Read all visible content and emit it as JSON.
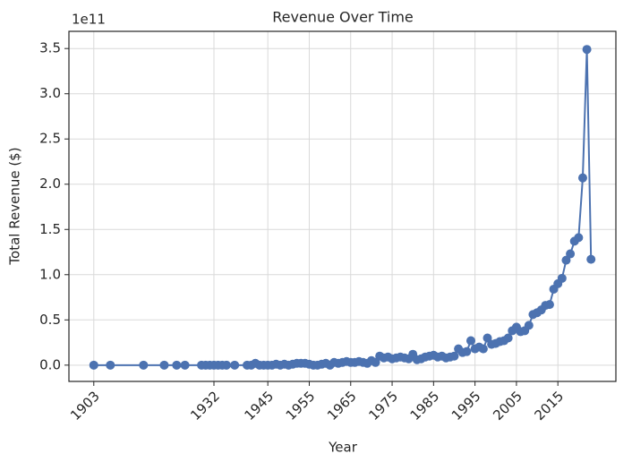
{
  "chart_data": {
    "type": "line",
    "title": "Revenue Over Time",
    "x_label": "Year",
    "y_label": "Total Revenue ($)",
    "y_offset_label": "1e11",
    "color": "#4c72b0",
    "grid": true,
    "markers": true,
    "x": [
      1903,
      1907,
      1915,
      1920,
      1923,
      1925,
      1929,
      1930,
      1931,
      1932,
      1933,
      1934,
      1935,
      1937,
      1940,
      1941,
      1942,
      1943,
      1944,
      1945,
      1946,
      1947,
      1948,
      1949,
      1950,
      1951,
      1952,
      1953,
      1954,
      1955,
      1956,
      1957,
      1958,
      1959,
      1960,
      1961,
      1962,
      1963,
      1964,
      1965,
      1966,
      1967,
      1968,
      1969,
      1970,
      1971,
      1972,
      1973,
      1974,
      1975,
      1976,
      1977,
      1978,
      1979,
      1980,
      1981,
      1982,
      1983,
      1984,
      1985,
      1986,
      1987,
      1988,
      1989,
      1990,
      1991,
      1992,
      1993,
      1994,
      1995,
      1996,
      1997,
      1998,
      1999,
      2000,
      2001,
      2002,
      2003,
      2004,
      2005,
      2006,
      2007,
      2008,
      2009,
      2010,
      2011,
      2012,
      2013,
      2014,
      2015,
      2016,
      2017,
      2018,
      2019,
      2020,
      2021,
      2022,
      2023
    ],
    "values": [
      0,
      0,
      0,
      0,
      0,
      0,
      0,
      0,
      0,
      0,
      0,
      0,
      0,
      0,
      0,
      0,
      0.02,
      0,
      0,
      0,
      0,
      0.01,
      0,
      0.01,
      0,
      0.01,
      0.02,
      0.02,
      0.02,
      0.01,
      0,
      0,
      0.01,
      0.02,
      0,
      0.03,
      0.02,
      0.03,
      0.04,
      0.03,
      0.03,
      0.04,
      0.03,
      0.02,
      0.05,
      0.03,
      0.1,
      0.08,
      0.09,
      0.07,
      0.08,
      0.09,
      0.08,
      0.07,
      0.12,
      0.06,
      0.07,
      0.09,
      0.1,
      0.11,
      0.09,
      0.1,
      0.08,
      0.09,
      0.1,
      0.18,
      0.14,
      0.15,
      0.27,
      0.18,
      0.2,
      0.18,
      0.3,
      0.23,
      0.24,
      0.26,
      0.27,
      0.3,
      0.38,
      0.42,
      0.37,
      0.38,
      0.44,
      0.56,
      0.58,
      0.61,
      0.66,
      0.67,
      0.84,
      0.9,
      0.96,
      1.16,
      1.23,
      1.37,
      1.41,
      2.07,
      3.49,
      1.17
    ],
    "xlim": [
      1897,
      2029
    ],
    "xticks": [
      1903,
      1932,
      1945,
      1955,
      1965,
      1975,
      1985,
      1995,
      2005,
      2015
    ],
    "ylim": [
      -0.18,
      3.69
    ],
    "yticks": [
      {
        "value": 0,
        "label": "0.0"
      },
      0.5,
      {
        "value": 1,
        "label": "1.0"
      },
      1.5,
      {
        "value": 2,
        "label": "2.0"
      },
      2.5,
      {
        "value": 3,
        "label": "3.0"
      },
      3.5
    ]
  }
}
